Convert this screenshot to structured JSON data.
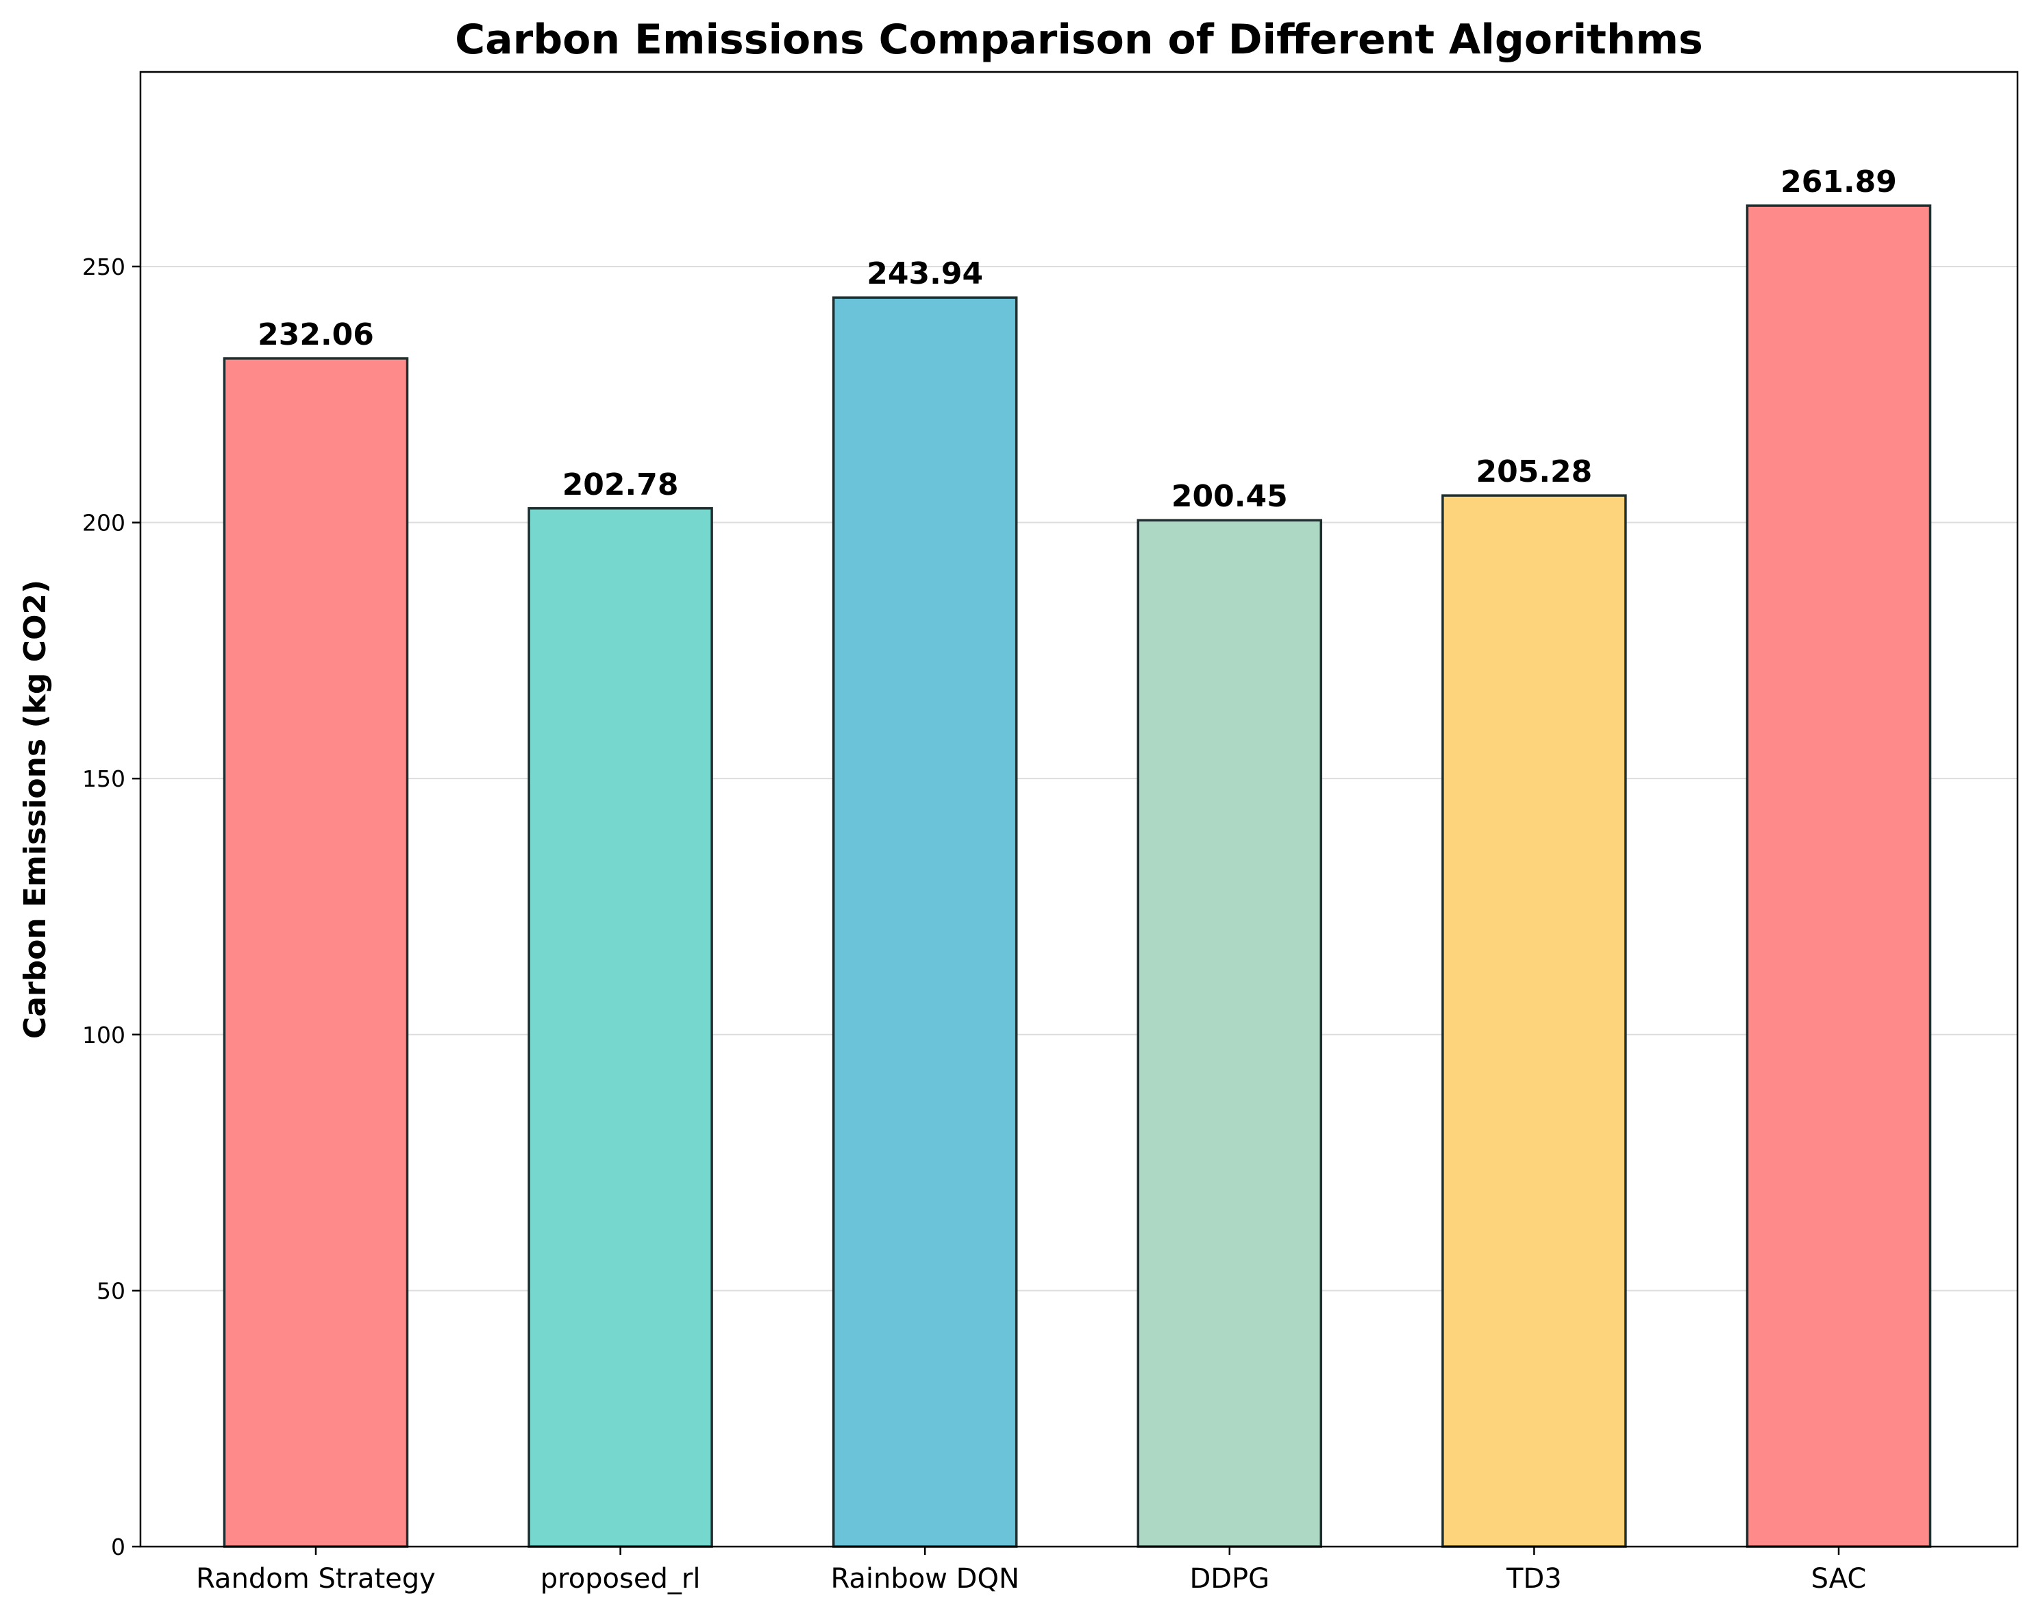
{
  "chart_data": {
    "type": "bar",
    "title": "Carbon Emissions Comparison of Different Algorithms",
    "xlabel": "",
    "ylabel": "Carbon Emissions (kg CO2)",
    "categories": [
      "Random Strategy",
      "proposed_rl",
      "Rainbow DQN",
      "DDPG",
      "TD3",
      "SAC"
    ],
    "values": [
      232.06,
      202.78,
      243.94,
      200.45,
      205.28,
      261.89
    ],
    "value_labels": [
      "232.06",
      "202.78",
      "243.94",
      "200.45",
      "205.28",
      "261.89"
    ],
    "colors": [
      "#ff8a8a",
      "#76d7cf",
      "#6ac3d8",
      "#add8c4",
      "#fdd37b",
      "#ff8a8a"
    ],
    "edge_color": "#1f2f2f",
    "ylim": [
      0,
      288
    ],
    "yticks": [
      0,
      50,
      100,
      150,
      200,
      250
    ],
    "grid": "y",
    "legend": "none"
  }
}
